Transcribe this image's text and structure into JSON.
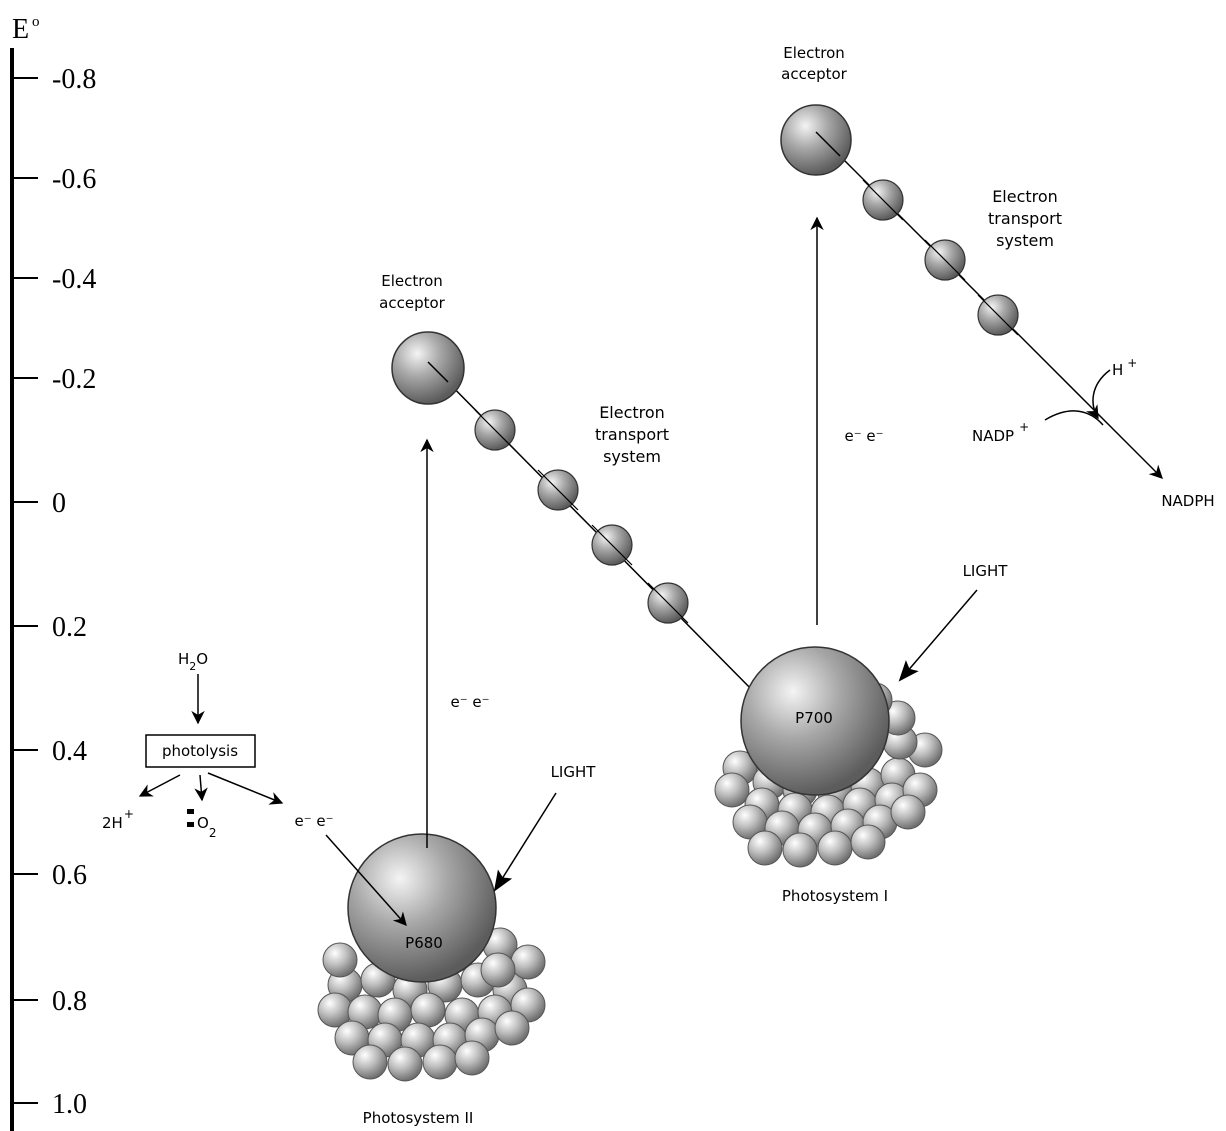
{
  "axis": {
    "title": "E",
    "title_sup": "o",
    "ticks": [
      "-0.8",
      "-0.6",
      "-0.4",
      "-0.2",
      "0",
      "0.2",
      "0.4",
      "0.6",
      "0.8",
      "1.0"
    ]
  },
  "photosystem_ii": {
    "reaction_center": "P680",
    "name": "Photosystem II",
    "light": "LIGHT",
    "electrons": "e⁻ e⁻",
    "acceptor_line1": "Electron",
    "acceptor_line2": "acceptor",
    "ets_line1": "Electron",
    "ets_line2": "transport",
    "ets_line3": "system"
  },
  "photosystem_i": {
    "reaction_center": "P700",
    "name": "Photosystem I",
    "light": "LIGHT",
    "electrons": "e⁻ e⁻",
    "acceptor_line1": "Electron",
    "acceptor_line2": "acceptor",
    "ets_line1": "Electron",
    "ets_line2": "transport",
    "ets_line3": "system"
  },
  "photolysis": {
    "water": "H",
    "water_sub": "2",
    "water_o": "O",
    "box_label": "photolysis",
    "protons": "2H",
    "protons_sup": "+",
    "oxygen": "O",
    "oxygen_sub": "2",
    "electrons": "e⁻ e⁻"
  },
  "nadp": {
    "proton": "H",
    "proton_sup": "+",
    "reactant": "NADP",
    "reactant_sup": "+",
    "product": "NADPH"
  }
}
